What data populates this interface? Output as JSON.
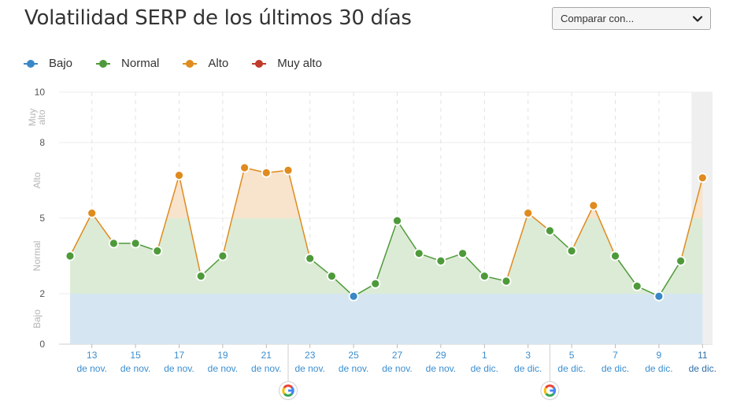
{
  "header": {
    "title": "Volatilidad SERP de los últimos 30 días"
  },
  "compare": {
    "label": "Comparar con...",
    "icon": "chevron-down-icon"
  },
  "legend": [
    {
      "label": "Bajo",
      "color": "#3a87c8"
    },
    {
      "label": "Normal",
      "color": "#4e9a3a"
    },
    {
      "label": "Alto",
      "color": "#e08b1e"
    },
    {
      "label": "Muy alto",
      "color": "#c0392b"
    }
  ],
  "chart_data": {
    "type": "area",
    "title": "Volatilidad SERP de los últimos 30 días",
    "ylim": [
      0,
      10
    ],
    "yticks": [
      0,
      2,
      5,
      8,
      10
    ],
    "bands": [
      {
        "label": "Bajo",
        "from": 0,
        "to": 2,
        "color": "#3a87c8"
      },
      {
        "label": "Normal",
        "from": 2,
        "to": 5,
        "color": "#4e9a3a"
      },
      {
        "label": "Alto",
        "from": 5,
        "to": 8,
        "color": "#e08b1e"
      },
      {
        "label": "Muy alto",
        "from": 8,
        "to": 10,
        "color": "#c0392b"
      }
    ],
    "band_labels": [
      "Bajo",
      "Normal",
      "Alto",
      "Muy alto"
    ],
    "days": [
      "12 nov",
      "13 nov",
      "14 nov",
      "15 nov",
      "16 nov",
      "17 nov",
      "18 nov",
      "19 nov",
      "20 nov",
      "21 nov",
      "22 nov",
      "23 nov",
      "24 nov",
      "25 nov",
      "26 nov",
      "27 nov",
      "28 nov",
      "29 nov",
      "30 nov",
      "1 dic",
      "2 dic",
      "3 dic",
      "4 dic",
      "5 dic",
      "6 dic",
      "7 dic",
      "8 dic",
      "9 dic",
      "10 dic",
      "11 dic"
    ],
    "values": [
      3.5,
      5.2,
      4.0,
      4.0,
      3.7,
      6.7,
      2.7,
      3.5,
      7.0,
      6.8,
      6.9,
      3.4,
      2.7,
      1.9,
      2.4,
      4.9,
      3.6,
      3.3,
      3.6,
      2.7,
      2.5,
      5.2,
      4.5,
      3.7,
      5.5,
      3.5,
      2.3,
      1.9,
      3.3,
      6.6
    ],
    "xticks": [
      {
        "day": "13",
        "month": "de nov."
      },
      {
        "day": "15",
        "month": "de nov."
      },
      {
        "day": "17",
        "month": "de nov."
      },
      {
        "day": "19",
        "month": "de nov."
      },
      {
        "day": "21",
        "month": "de nov."
      },
      {
        "day": "23",
        "month": "de nov."
      },
      {
        "day": "25",
        "month": "de nov."
      },
      {
        "day": "27",
        "month": "de nov."
      },
      {
        "day": "29",
        "month": "de nov."
      },
      {
        "day": "1",
        "month": "de dic."
      },
      {
        "day": "3",
        "month": "de dic."
      },
      {
        "day": "5",
        "month": "de dic."
      },
      {
        "day": "7",
        "month": "de dic."
      },
      {
        "day": "9",
        "month": "de dic."
      },
      {
        "day": "11",
        "month": "de dic."
      }
    ],
    "google_updates": [
      "22 nov",
      "4 dic"
    ],
    "highlighted_day": "11 dic"
  }
}
